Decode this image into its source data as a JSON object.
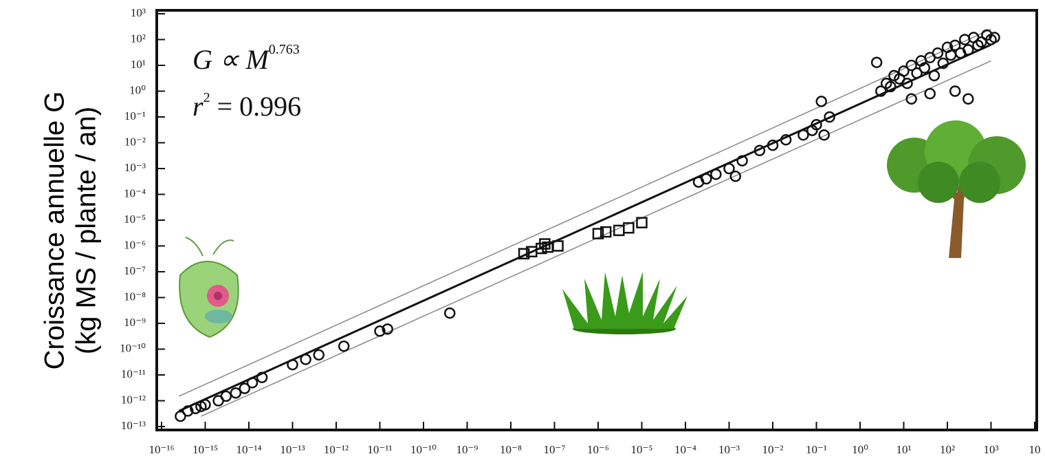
{
  "chart_data": {
    "type": "scatter",
    "y_label_lines": [
      "Croissance annuelle G",
      "(kg MS / plante / an)"
    ],
    "annotations": [
      {
        "text": "G ∝ M",
        "superscript": "0.763"
      },
      {
        "text": "r",
        "superscript": "2",
        "rest": " = 0.996"
      }
    ],
    "log_x": true,
    "log_y": true,
    "xlim": [
      1e-16,
      10000
    ],
    "ylim": [
      1e-13,
      1000
    ],
    "xticks": [
      {
        "value": 1e-16,
        "label": "10⁻¹⁶"
      },
      {
        "value": 1e-15,
        "label": "10⁻¹⁵"
      },
      {
        "value": 1e-14,
        "label": "10⁻¹⁴"
      },
      {
        "value": 1e-13,
        "label": "10⁻¹³"
      },
      {
        "value": 1e-12,
        "label": "10⁻¹²"
      },
      {
        "value": 1e-11,
        "label": "10⁻¹¹"
      },
      {
        "value": 1e-10,
        "label": "10⁻¹⁰"
      },
      {
        "value": 1e-09,
        "label": "10⁻⁹"
      },
      {
        "value": 1e-08,
        "label": "10⁻⁸"
      },
      {
        "value": 1e-07,
        "label": "10⁻⁷"
      },
      {
        "value": 1e-06,
        "label": "10⁻⁶"
      },
      {
        "value": 1e-05,
        "label": "10⁻⁵"
      },
      {
        "value": 0.0001,
        "label": "10⁻⁴"
      },
      {
        "value": 0.001,
        "label": "10⁻³"
      },
      {
        "value": 0.01,
        "label": "10⁻²"
      },
      {
        "value": 0.1,
        "label": "10⁻¹"
      },
      {
        "value": 1,
        "label": "10⁰"
      },
      {
        "value": 10,
        "label": "10¹"
      },
      {
        "value": 100,
        "label": "10²"
      },
      {
        "value": 1000,
        "label": "10³"
      },
      {
        "value": 10000,
        "label": "10"
      }
    ],
    "yticks": [
      {
        "value": 1e-13,
        "label": "10⁻¹³"
      },
      {
        "value": 1e-12,
        "label": "10⁻¹²"
      },
      {
        "value": 1e-11,
        "label": "10⁻¹¹"
      },
      {
        "value": 1e-10,
        "label": "10⁻¹⁰"
      },
      {
        "value": 1e-09,
        "label": "10⁻⁹"
      },
      {
        "value": 1e-08,
        "label": "10⁻⁸"
      },
      {
        "value": 1e-07,
        "label": "10⁻⁷"
      },
      {
        "value": 1e-06,
        "label": "10⁻⁶"
      },
      {
        "value": 1e-05,
        "label": "10⁻⁵"
      },
      {
        "value": 0.0001,
        "label": "10⁻⁴"
      },
      {
        "value": 0.001,
        "label": "10⁻³"
      },
      {
        "value": 0.01,
        "label": "10⁻²"
      },
      {
        "value": 0.1,
        "label": "10⁻¹"
      },
      {
        "value": 1,
        "label": "10⁰"
      },
      {
        "value": 10,
        "label": "10¹"
      },
      {
        "value": 100,
        "label": "10²"
      },
      {
        "value": 1000,
        "label": "10³"
      }
    ],
    "series": [
      {
        "marker": "circle",
        "color": "#111111",
        "x": [
          2.7e-16,
          4e-16,
          6e-16,
          8e-16,
          1e-15,
          2e-15,
          3e-15,
          5e-15,
          8e-15,
          1.2e-14,
          2e-14,
          1e-13,
          2e-13,
          4e-13,
          1.5e-12,
          1e-11,
          1.5e-11,
          4e-10,
          0.0002,
          0.0003,
          0.0005,
          0.001,
          0.002,
          0.005,
          0.01,
          0.02,
          0.05,
          0.08,
          0.1,
          0.2,
          0.0014,
          0.13,
          0.15,
          2.4,
          3,
          4,
          5,
          6,
          8,
          10,
          12,
          15,
          20,
          25,
          30,
          40,
          50,
          60,
          80,
          100,
          120,
          150,
          200,
          250,
          300,
          400,
          500,
          600,
          800,
          1000,
          1200,
          15,
          40,
          150,
          300
        ],
        "values": [
          2.5e-13,
          4e-13,
          5e-13,
          6e-13,
          7e-13,
          1e-12,
          1.5e-12,
          2e-12,
          3e-12,
          5e-12,
          8e-12,
          2.5e-11,
          4e-11,
          6e-11,
          1.3e-10,
          5e-10,
          6e-10,
          2.5e-09,
          0.0003,
          0.0004,
          0.0006,
          0.001,
          0.002,
          0.005,
          0.008,
          0.013,
          0.02,
          0.03,
          0.05,
          0.1,
          0.0005,
          0.4,
          0.02,
          13,
          1,
          2,
          1.5,
          4,
          3,
          6,
          2,
          10,
          5,
          15,
          8,
          20,
          4,
          30,
          12,
          50,
          25,
          60,
          30,
          100,
          40,
          120,
          60,
          80,
          150,
          100,
          120,
          0.5,
          0.8,
          1,
          0.5
        ]
      },
      {
        "marker": "square",
        "color": "#111111",
        "x": [
          2e-08,
          3e-08,
          5e-08,
          6e-08,
          7e-08,
          1.2e-07,
          1e-06,
          1.5e-06,
          3e-06,
          5e-06,
          1e-05
        ],
        "values": [
          5e-07,
          6e-07,
          8e-07,
          1.2e-06,
          9e-07,
          1e-06,
          3e-06,
          3.5e-06,
          4e-06,
          5e-06,
          8e-06
        ]
      }
    ],
    "lines": [
      {
        "color": "#111111",
        "width": 3,
        "x": [
          2.5e-16,
          1000
        ],
        "values": [
          4e-13,
          63
        ]
      },
      {
        "color": "#888888",
        "width": 1.5,
        "x": [
          2.5e-16,
          1000
        ],
        "values": [
          1.5e-12,
          250
        ]
      },
      {
        "color": "#888888",
        "width": 1.5,
        "x": [
          8e-16,
          1000
        ],
        "values": [
          2.5e-13,
          15
        ]
      }
    ]
  }
}
